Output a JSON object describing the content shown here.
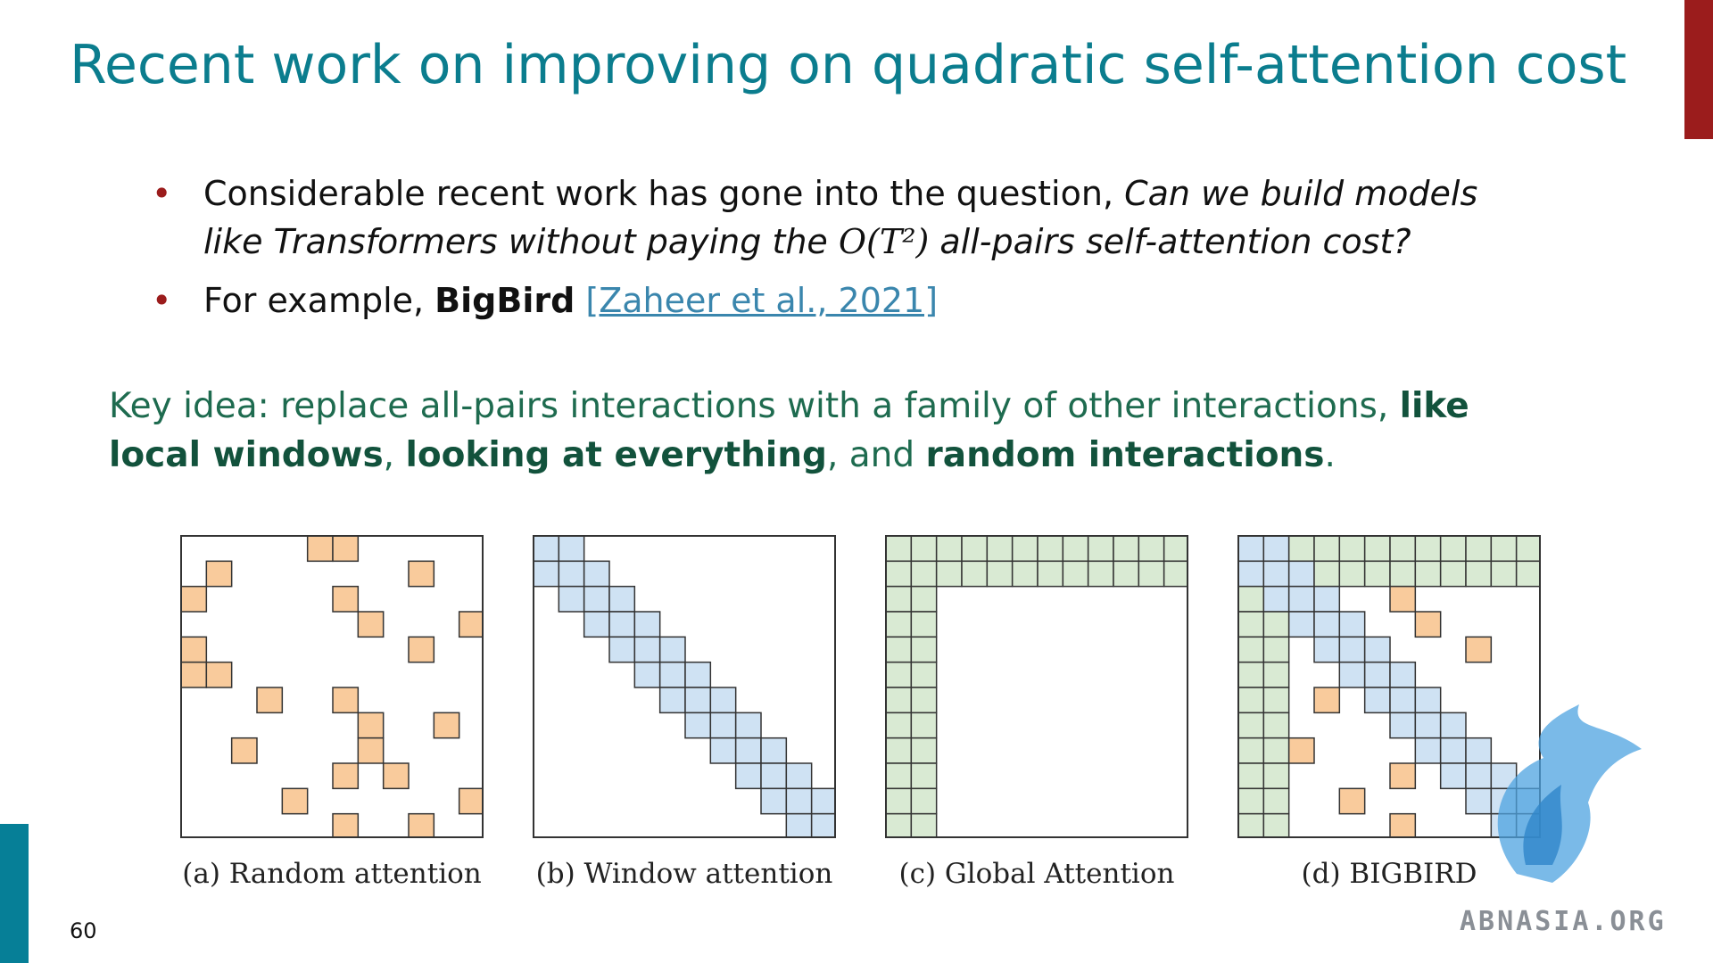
{
  "slide": {
    "title": "Recent work on improving on quadratic self-attention cost",
    "page_number": "60",
    "watermark": "ABNASIA.ORG"
  },
  "bullets": {
    "b1": {
      "text_plain": "Considerable recent work has gone into the question, ",
      "text_italic_1": "Can we build models like Transformers without paying the ",
      "math": "O(T²)",
      "text_italic_2": " all-pairs self-attention cost?"
    },
    "b2": {
      "text_plain": "For example, ",
      "bold": "BigBird",
      "citation": "[Zaheer et al., 2021]"
    }
  },
  "key_idea": {
    "prefix": "Key idea: replace all-pairs interactions with a family of other interactions, ",
    "bold_1": "like local windows",
    "sep_1": ", ",
    "bold_2": "looking at everything",
    "sep_2": ", and ",
    "bold_3": "random interactions",
    "suffix": "."
  },
  "diagrams": {
    "grid_size": 12,
    "colors": {
      "random": "#f9cb9c",
      "window": "#cfe2f3",
      "global": "#d9ead3",
      "stroke": "#333333"
    },
    "panels": [
      {
        "id": "random",
        "caption": "(a) Random attention",
        "random_cells": [
          [
            0,
            5
          ],
          [
            0,
            6
          ],
          [
            1,
            1
          ],
          [
            1,
            9
          ],
          [
            2,
            0
          ],
          [
            2,
            6
          ],
          [
            3,
            7
          ],
          [
            3,
            11
          ],
          [
            4,
            0
          ],
          [
            4,
            9
          ],
          [
            5,
            0
          ],
          [
            5,
            1
          ],
          [
            6,
            3
          ],
          [
            6,
            6
          ],
          [
            7,
            7
          ],
          [
            7,
            10
          ],
          [
            8,
            2
          ],
          [
            8,
            7
          ],
          [
            9,
            6
          ],
          [
            9,
            8
          ],
          [
            10,
            4
          ],
          [
            10,
            11
          ],
          [
            11,
            6
          ],
          [
            11,
            9
          ]
        ]
      },
      {
        "id": "window",
        "caption": "(b) Window attention",
        "window_radius": 1
      },
      {
        "id": "global",
        "caption": "(c) Global Attention",
        "global_count": 2
      },
      {
        "id": "bigbird",
        "caption": "(d) BIGBIRD",
        "window_radius": 1,
        "global_count": 2,
        "random_cells": [
          [
            2,
            6
          ],
          [
            3,
            7
          ],
          [
            4,
            9
          ],
          [
            6,
            3
          ],
          [
            8,
            2
          ],
          [
            9,
            6
          ],
          [
            10,
            4
          ],
          [
            11,
            6
          ]
        ]
      }
    ]
  }
}
